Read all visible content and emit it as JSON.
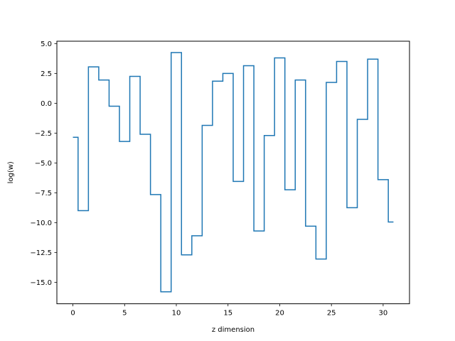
{
  "chart_data": {
    "type": "line",
    "drawstyle": "steps-mid",
    "title": "",
    "xlabel": "z dimension",
    "ylabel": "log(w)",
    "xlim": [
      -1.55,
      32.55
    ],
    "ylim": [
      -16.8,
      5.2
    ],
    "grid": false,
    "legend": "none",
    "x_ticks": [
      {
        "value": 0,
        "label": "0"
      },
      {
        "value": 5,
        "label": "5"
      },
      {
        "value": 10,
        "label": "10"
      },
      {
        "value": 15,
        "label": "15"
      },
      {
        "value": 20,
        "label": "20"
      },
      {
        "value": 25,
        "label": "25"
      },
      {
        "value": 30,
        "label": "30"
      }
    ],
    "y_ticks": [
      {
        "value": 5.0,
        "label": "5.0"
      },
      {
        "value": 2.5,
        "label": "2.5"
      },
      {
        "value": 0.0,
        "label": "0.0"
      },
      {
        "value": -2.5,
        "label": "−2.5"
      },
      {
        "value": -5.0,
        "label": "−5.0"
      },
      {
        "value": -7.5,
        "label": "−7.5"
      },
      {
        "value": -10.0,
        "label": "−10.0"
      },
      {
        "value": -12.5,
        "label": "−12.5"
      },
      {
        "value": -15.0,
        "label": "−15.0"
      }
    ],
    "series": [
      {
        "color": "#1f77b4",
        "x": [
          0,
          1,
          2,
          3,
          4,
          5,
          6,
          7,
          8,
          9,
          10,
          11,
          12,
          13,
          14,
          15,
          16,
          17,
          18,
          19,
          20,
          21,
          22,
          23,
          24,
          25,
          26,
          27,
          28,
          29,
          30,
          31
        ],
        "values": [
          -2.85,
          -9.0,
          3.05,
          1.95,
          -0.25,
          -3.2,
          2.25,
          -2.6,
          -7.65,
          -15.8,
          4.25,
          -12.7,
          -11.1,
          -1.85,
          1.85,
          2.5,
          -6.55,
          3.15,
          -10.7,
          -2.7,
          3.8,
          -7.25,
          1.95,
          -10.3,
          -13.05,
          1.75,
          3.5,
          -8.75,
          -1.35,
          3.7,
          -6.4,
          -9.95
        ]
      }
    ]
  }
}
